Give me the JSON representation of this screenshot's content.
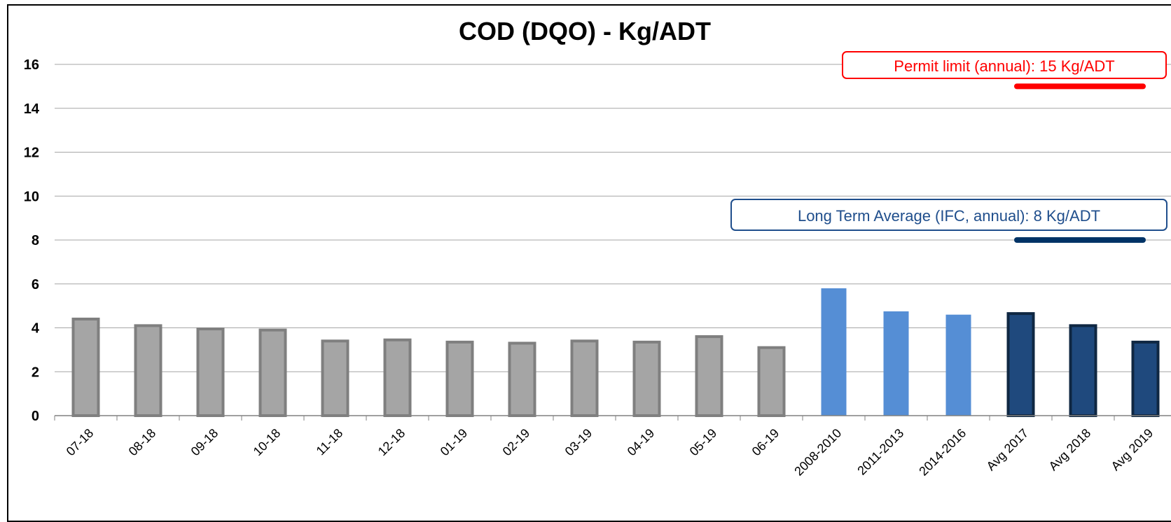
{
  "chart_data": {
    "type": "bar",
    "title": "COD (DQO) - Kg/ADT",
    "categories": [
      "07-18",
      "08-18",
      "09-18",
      "10-18",
      "11-18",
      "12-18",
      "01-19",
      "02-19",
      "03-19",
      "04-19",
      "05-19",
      "06-19",
      "2008-2010",
      "2011-2013",
      "2014-2016",
      "Avg 2017",
      "Avg 2018",
      "Avg 2019"
    ],
    "values": [
      4.4,
      4.1,
      3.95,
      3.9,
      3.4,
      3.45,
      3.35,
      3.3,
      3.4,
      3.35,
      3.6,
      3.1,
      5.8,
      4.75,
      4.6,
      4.65,
      4.1,
      3.35
    ],
    "bar_colors": [
      "#a5a5a5",
      "#a5a5a5",
      "#a5a5a5",
      "#a5a5a5",
      "#a5a5a5",
      "#a5a5a5",
      "#a5a5a5",
      "#a5a5a5",
      "#a5a5a5",
      "#a5a5a5",
      "#a5a5a5",
      "#a5a5a5",
      "#558ed5",
      "#558ed5",
      "#558ed5",
      "#1f497d",
      "#1f497d",
      "#1f497d"
    ],
    "bar_outlines": [
      "#7f7f7f",
      "#7f7f7f",
      "#7f7f7f",
      "#7f7f7f",
      "#7f7f7f",
      "#7f7f7f",
      "#7f7f7f",
      "#7f7f7f",
      "#7f7f7f",
      "#7f7f7f",
      "#7f7f7f",
      "#7f7f7f",
      "#558ed5",
      "#558ed5",
      "#558ed5",
      "#0f2742",
      "#0f2742",
      "#0f2742"
    ],
    "ylim": [
      0,
      16
    ],
    "yticks": [
      0,
      2,
      4,
      6,
      8,
      10,
      12,
      14,
      16
    ],
    "xlabel": "",
    "ylabel": "",
    "grid": true,
    "annotations": [
      {
        "text": "Permit limit (annual):  15 Kg/ADT",
        "value": 15,
        "color": "#ff0000"
      },
      {
        "text": "Long Term Average (IFC, annual): 8 Kg/ADT",
        "value": 8,
        "color": "#003366"
      }
    ]
  }
}
